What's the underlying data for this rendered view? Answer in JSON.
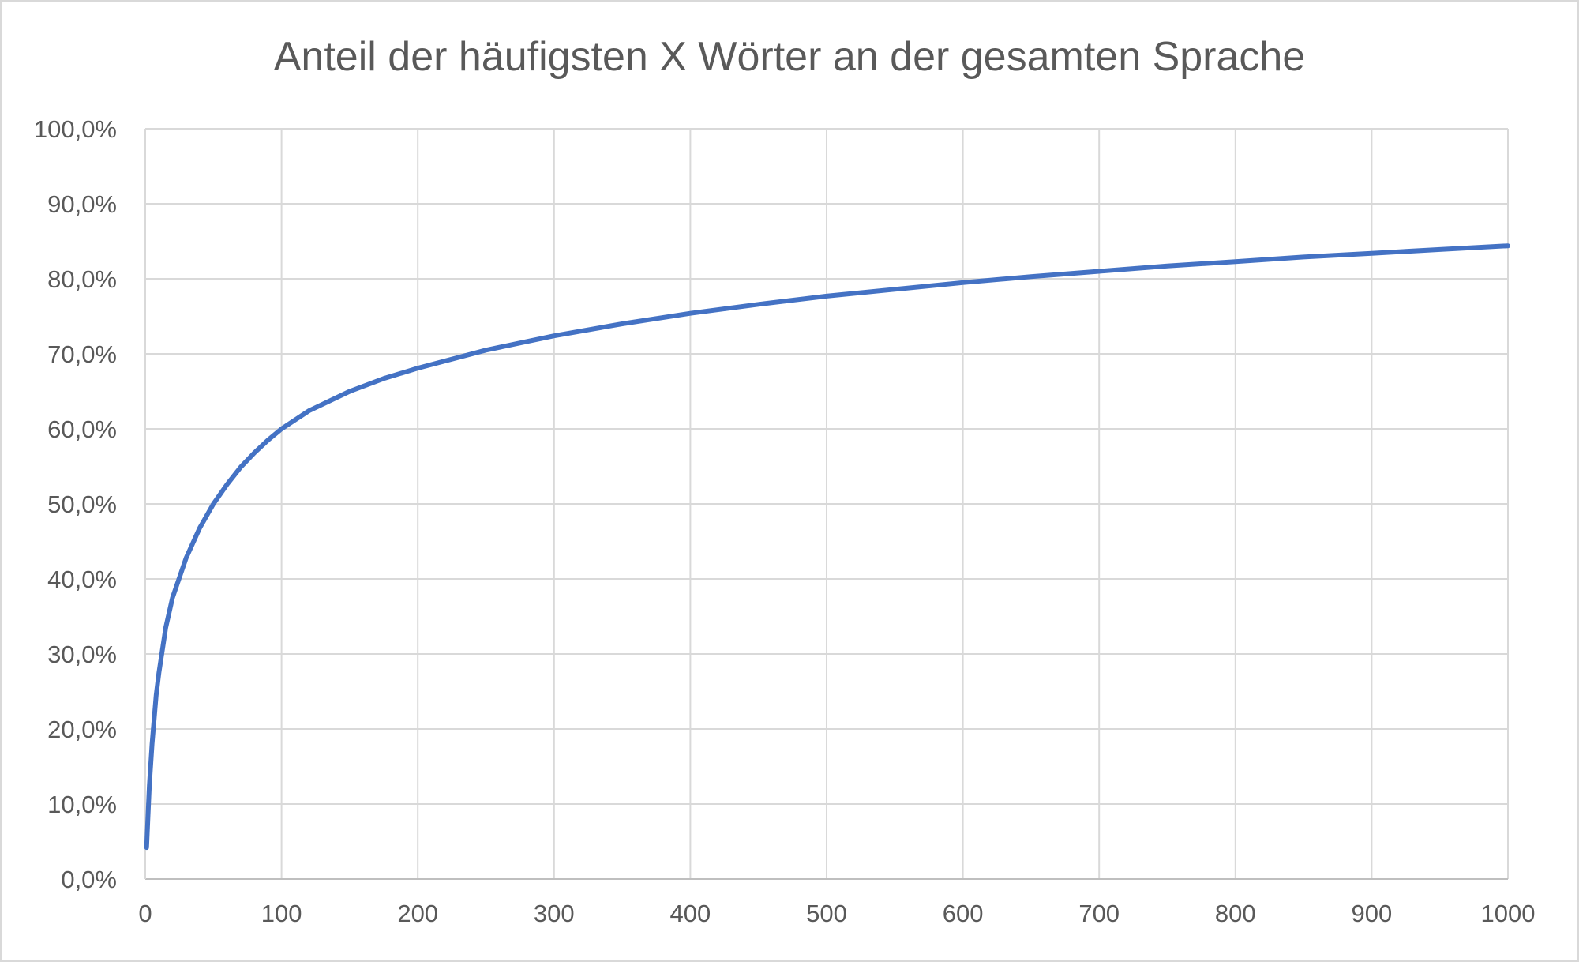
{
  "chart_data": {
    "type": "line",
    "title": "Anteil der häufigsten X Wörter an der gesamten Sprache",
    "xlabel": "",
    "ylabel": "",
    "xlim": [
      0,
      1000
    ],
    "ylim": [
      0,
      100
    ],
    "grid": true,
    "legend": "none",
    "x_ticks": [
      "0",
      "100",
      "200",
      "300",
      "400",
      "500",
      "600",
      "700",
      "800",
      "900",
      "1000"
    ],
    "y_ticks": [
      "0,0%",
      "10,0%",
      "20,0%",
      "30,0%",
      "40,0%",
      "50,0%",
      "60,0%",
      "70,0%",
      "80,0%",
      "90,0%",
      "100,0%"
    ],
    "series": [
      {
        "color": "#4472c4",
        "x": [
          1,
          2,
          3,
          5,
          8,
          10,
          15,
          20,
          30,
          40,
          50,
          60,
          70,
          80,
          90,
          100,
          120,
          150,
          175,
          200,
          250,
          300,
          350,
          400,
          450,
          500,
          550,
          600,
          650,
          700,
          750,
          800,
          850,
          900,
          950,
          1000
        ],
        "y": [
          4.2,
          8.5,
          12.5,
          18.0,
          24.5,
          27.5,
          33.5,
          37.5,
          42.8,
          46.8,
          50.0,
          52.6,
          54.9,
          56.8,
          58.5,
          60.0,
          62.4,
          65.0,
          66.7,
          68.1,
          70.5,
          72.4,
          74.0,
          75.4,
          76.6,
          77.7,
          78.6,
          79.5,
          80.3,
          81.0,
          81.7,
          82.3,
          82.9,
          83.4,
          83.9,
          84.4
        ]
      }
    ]
  }
}
